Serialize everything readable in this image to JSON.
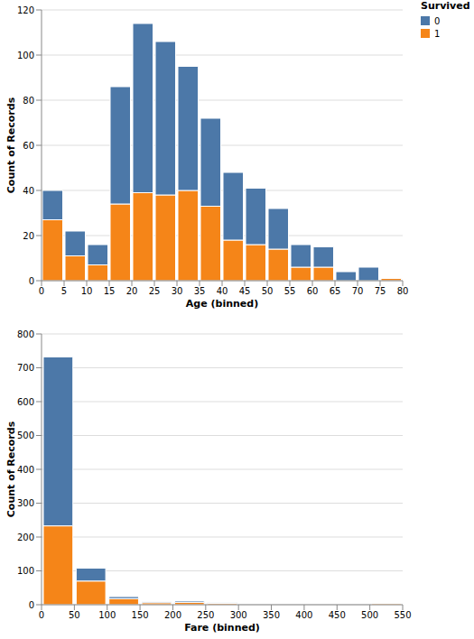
{
  "chart_data": [
    {
      "type": "histogram",
      "xlabel": "Age (binned)",
      "ylabel": "Count of Records",
      "bins": [
        0,
        5,
        10,
        15,
        20,
        25,
        30,
        35,
        40,
        45,
        50,
        55,
        60,
        65,
        70,
        75,
        80
      ],
      "series": [
        {
          "name": "0",
          "color": "#4c78a8",
          "values": [
            13,
            11,
            9,
            52,
            75,
            68,
            55,
            39,
            30,
            25,
            18,
            10,
            9,
            4,
            6,
            0
          ]
        },
        {
          "name": "1",
          "color": "#f58518",
          "values": [
            27,
            11,
            7,
            34,
            39,
            38,
            40,
            33,
            18,
            16,
            14,
            6,
            6,
            0,
            0,
            1
          ]
        }
      ],
      "stacked": true,
      "xlim": [
        0,
        80
      ],
      "xticks": [
        0,
        5,
        10,
        15,
        20,
        25,
        30,
        35,
        40,
        45,
        50,
        55,
        60,
        65,
        70,
        75,
        80
      ],
      "ylim": [
        0,
        120
      ],
      "yticks": [
        0,
        20,
        40,
        60,
        80,
        100,
        120
      ],
      "grid": true,
      "legend": "right",
      "legend_title": "Survived"
    },
    {
      "type": "histogram",
      "xlabel": "Fare (binned)",
      "ylabel": "Count of Records",
      "bins": [
        0,
        50,
        100,
        150,
        200,
        250,
        300,
        350,
        400,
        450,
        500,
        550
      ],
      "series": [
        {
          "name": "0",
          "color": "#4c78a8",
          "values": [
            499,
            38,
            6,
            3,
            4,
            2,
            0,
            0,
            0,
            0,
            0
          ]
        },
        {
          "name": "1",
          "color": "#f58518",
          "values": [
            233,
            70,
            18,
            6,
            7,
            4,
            0,
            0,
            0,
            0,
            3
          ]
        }
      ],
      "stacked": true,
      "xlim": [
        0,
        550
      ],
      "xticks": [
        0,
        50,
        100,
        150,
        200,
        250,
        300,
        350,
        400,
        450,
        500,
        550
      ],
      "ylim": [
        0,
        800
      ],
      "yticks": [
        0,
        100,
        200,
        300,
        400,
        500,
        600,
        700,
        800
      ],
      "grid": true
    }
  ]
}
